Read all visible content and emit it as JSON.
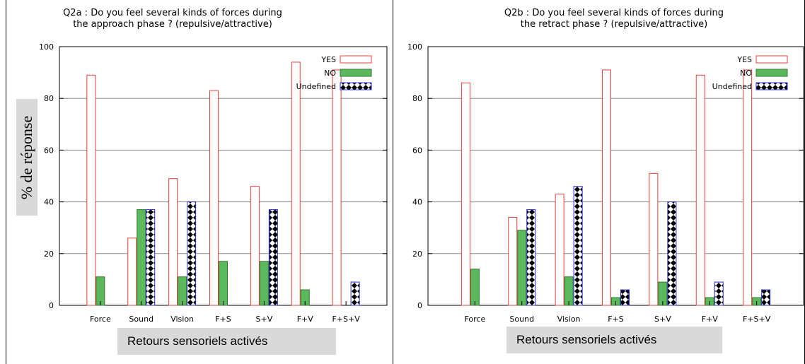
{
  "colors": {
    "yes": "#e8413a",
    "no_fill": "#5cb85c",
    "no_stroke": "#2d7a2d",
    "undefined_stroke": "#2b2bd6",
    "grid": "#8a8a8a"
  },
  "charts": [
    {
      "title_line1": "Q2a : Do you feel several kinds of forces during",
      "title_line2": "the approach phase ? (repulsive/attractive)",
      "xlabel": "Retours sensoriels activés",
      "ylabel": "% de réponse"
    },
    {
      "title_line1": "Q2b : Do you feel several kinds of forces during",
      "title_line2": "the retract phase ? (repulsive/attractive)",
      "xlabel": "Retours sensoriels activés",
      "ylabel": ""
    }
  ],
  "chart_data": [
    {
      "type": "bar",
      "title": "Q2a : Do you feel several kinds of forces during the approach phase ? (repulsive/attractive)",
      "xlabel": "Retours sensoriels activés",
      "ylabel": "% de réponse",
      "categories": [
        "Force",
        "Sound",
        "Vision",
        "F+S",
        "S+V",
        "F+V",
        "F+S+V"
      ],
      "ylim": [
        0,
        100
      ],
      "yticks": [
        "0",
        "20",
        "40",
        "60",
        "80",
        "100"
      ],
      "grid": true,
      "legend_position": "top-right",
      "series": [
        {
          "name": "YES",
          "values": [
            89,
            26,
            49,
            83,
            46,
            94,
            91
          ]
        },
        {
          "name": "NO",
          "values": [
            11,
            37,
            11,
            17,
            17,
            6,
            0
          ]
        },
        {
          "name": "Undefined",
          "values": [
            0,
            37,
            40,
            0,
            37,
            0,
            9
          ]
        }
      ]
    },
    {
      "type": "bar",
      "title": "Q2b : Do you feel several kinds of forces during the retract phase ? (repulsive/attractive)",
      "xlabel": "Retours sensoriels activés",
      "ylabel": "",
      "categories": [
        "Force",
        "Sound",
        "Vision",
        "F+S",
        "S+V",
        "F+V",
        "F+S+V"
      ],
      "ylim": [
        0,
        100
      ],
      "yticks": [
        "0",
        "20",
        "40",
        "60",
        "80",
        "100"
      ],
      "grid": true,
      "legend_position": "top-right",
      "series": [
        {
          "name": "YES",
          "values": [
            86,
            34,
            43,
            91,
            51,
            89,
            91
          ]
        },
        {
          "name": "NO",
          "values": [
            14,
            29,
            11,
            3,
            9,
            3,
            3
          ]
        },
        {
          "name": "Undefined",
          "values": [
            0,
            37,
            46,
            6,
            40,
            9,
            6
          ]
        }
      ]
    }
  ]
}
